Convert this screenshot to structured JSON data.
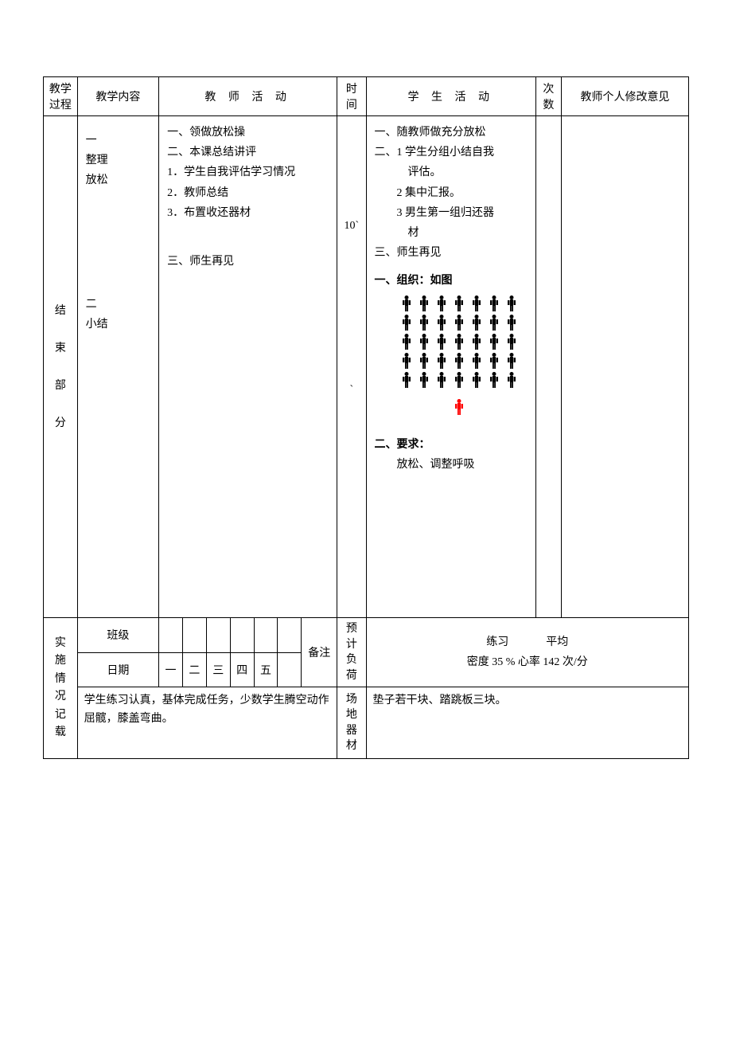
{
  "headers": {
    "process": "教学过程",
    "content": "教学内容",
    "teacher_activity": "教 师 活 动",
    "time": "时间",
    "student_activity": "学 生 活 动",
    "count": "次数",
    "teacher_suggestion": "教师个人修改意见"
  },
  "ending_section": {
    "label": "结束部分",
    "content_col": {
      "item1_num": "一",
      "item1_line1": "整理",
      "item1_line2": "放松",
      "item2_num": "二",
      "item2_line1": "小结"
    },
    "teacher_activity": {
      "line1": "一、领做放松操",
      "line2": "二、本课总结讲评",
      "line3": "1．学生自我评估学习情况",
      "line4": "2．教师总结",
      "line5": "3．布置收还器材",
      "line6": "三、师生再见"
    },
    "time": {
      "value": "10`",
      "tick": "`"
    },
    "student_activity": {
      "line1": "一、随教师做充分放松",
      "line2": "二、1 学生分组小结自我",
      "line2b": "评估。",
      "line3": "2 集中汇报。",
      "line3b": "3 男生第一组归还器",
      "line3c": "材",
      "line4": "三、师生再见",
      "line5": "一、组织：如图",
      "line6": "二、要求：",
      "line7": "放松、调整呼吸"
    },
    "formation": {
      "rows": 5,
      "cols": 7,
      "student_color": "#000000",
      "teacher_color": "#ff0000"
    }
  },
  "impl_section": {
    "label": "实施情况记载",
    "class_label": "班级",
    "date_label": "日期",
    "days": [
      "一",
      "二",
      "三",
      "四",
      "五"
    ],
    "remark_label": "备注",
    "load_label": "预计负荷",
    "venue_label": "场地器材",
    "stats": {
      "line1_left": "练习",
      "line1_right": "平均",
      "line2": "密度 35 %  心率 142  次/分"
    },
    "notes": "学生练习认真，基体完成任务，少数学生腾空动作屈髋，膝盖弯曲。",
    "venue_text": "垫子若干块、踏跳板三块。"
  }
}
